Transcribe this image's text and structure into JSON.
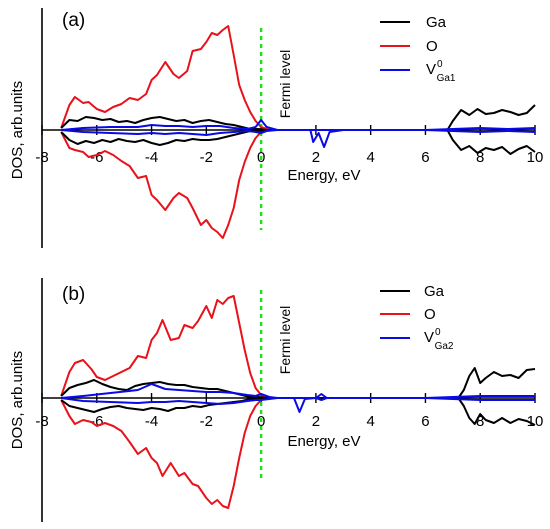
{
  "colors": {
    "ga": "#000000",
    "o": "#e8121b",
    "v": "#0a0ae6",
    "fermi": "#22dd22",
    "axis": "#000000"
  },
  "chart_data": [
    {
      "type": "line",
      "panel_label": "(a)",
      "xlabel": "Energy, eV",
      "ylabel": "DOS, arb.units",
      "xlim": [
        -8,
        10
      ],
      "x_ticks": [
        "-8",
        "-6",
        "-4",
        "-2",
        "0",
        "2",
        "4",
        "6",
        "8",
        "10"
      ],
      "fermi_level": 0,
      "fermi_label": "Fermi level",
      "legend_position": "top-right",
      "legend": [
        {
          "key": "ga",
          "label": "Ga"
        },
        {
          "key": "o",
          "label": "O"
        },
        {
          "key": "v",
          "label": "V",
          "sup": "0",
          "sub": "Ga1"
        }
      ],
      "series": [
        {
          "name": "O",
          "key": "o",
          "x": [
            -7.3,
            -7.0,
            -6.8,
            -6.5,
            -6.3,
            -6.0,
            -5.7,
            -5.4,
            -5.1,
            -4.8,
            -4.5,
            -4.2,
            -4.0,
            -3.8,
            -3.5,
            -3.2,
            -3.0,
            -2.7,
            -2.5,
            -2.2,
            -2.0,
            -1.8,
            -1.6,
            -1.4,
            -1.2,
            -1.0,
            -0.8,
            -0.6,
            -0.4,
            -0.2,
            0.0,
            0.3
          ],
          "up": [
            0.2,
            2.5,
            3.3,
            2.7,
            2.8,
            2.1,
            1.8,
            2.3,
            2.6,
            3.2,
            3.0,
            3.6,
            5.0,
            5.5,
            6.8,
            5.6,
            5.2,
            5.9,
            7.9,
            8.1,
            8.8,
            9.7,
            9.5,
            10.0,
            10.4,
            7.5,
            4.5,
            3.0,
            1.8,
            0.9,
            0.3,
            0.0
          ],
          "down": [
            -0.2,
            -1.8,
            -2.0,
            -2.2,
            -2.7,
            -2.5,
            -2.1,
            -2.5,
            -3.1,
            -3.6,
            -4.8,
            -4.6,
            -6.5,
            -7.0,
            -8.0,
            -6.8,
            -6.3,
            -6.8,
            -7.8,
            -9.5,
            -9.0,
            -9.8,
            -10.2,
            -10.8,
            -9.5,
            -7.8,
            -5.0,
            -3.2,
            -1.8,
            -0.8,
            -0.2,
            0.0
          ]
        },
        {
          "name": "Ga",
          "key": "ga",
          "x": [
            -7.3,
            -7.0,
            -6.7,
            -6.4,
            -6.1,
            -5.8,
            -5.5,
            -5.2,
            -4.9,
            -4.6,
            -4.3,
            -4.0,
            -3.7,
            -3.4,
            -3.1,
            -2.8,
            -2.5,
            -2.2,
            -1.9,
            -1.6,
            -1.3,
            -1.0,
            -0.7,
            -0.4,
            -0.1,
            0.2,
            1.0,
            3.0,
            5.0,
            6.8,
            7.0,
            7.3,
            7.6,
            7.9,
            8.2,
            8.5,
            8.8,
            9.1,
            9.4,
            9.7,
            10.0
          ],
          "up": [
            0.2,
            1.0,
            0.9,
            1.3,
            1.2,
            1.0,
            1.1,
            0.8,
            0.9,
            0.7,
            1.0,
            1.2,
            1.3,
            1.1,
            0.9,
            1.0,
            0.7,
            0.9,
            1.0,
            0.8,
            0.6,
            0.5,
            0.3,
            0.1,
            0.1,
            0.0,
            0.0,
            0.0,
            0.0,
            0.0,
            0.9,
            2.0,
            1.5,
            2.1,
            1.6,
            1.7,
            2.0,
            1.8,
            1.5,
            1.7,
            2.5
          ],
          "down": [
            -0.2,
            -1.0,
            -1.4,
            -1.1,
            -1.3,
            -1.0,
            -1.2,
            -0.9,
            -1.1,
            -1.2,
            -1.0,
            -1.3,
            -1.5,
            -1.3,
            -1.0,
            -1.1,
            -0.9,
            -1.0,
            -1.0,
            -0.9,
            -0.7,
            -0.5,
            -0.3,
            -0.1,
            -0.1,
            0.0,
            0.0,
            0.0,
            0.0,
            0.0,
            -1.0,
            -2.0,
            -1.6,
            -2.3,
            -1.8,
            -2.0,
            -1.7,
            -2.4,
            -1.9,
            -1.6,
            -2.2
          ]
        },
        {
          "name": "V0 Ga1",
          "key": "v",
          "x": [
            -7.3,
            -6.5,
            -5.5,
            -4.5,
            -4.0,
            -3.5,
            -3.0,
            -2.5,
            -2.0,
            -1.5,
            -1.0,
            -0.5,
            -0.2,
            0.0,
            0.2,
            0.6,
            1.8,
            1.9,
            2.1,
            2.3,
            2.5,
            3.0,
            6.0,
            7.0,
            8.0,
            9.0,
            10.0
          ],
          "up": [
            0.0,
            0.2,
            0.3,
            0.3,
            0.5,
            0.4,
            0.4,
            0.3,
            0.4,
            0.4,
            0.2,
            0.1,
            0.3,
            1.0,
            0.3,
            0.0,
            0.0,
            0.0,
            0.0,
            0.0,
            0.0,
            0.0,
            0.0,
            0.1,
            0.2,
            0.1,
            0.2
          ],
          "down": [
            0.0,
            -0.2,
            -0.3,
            -0.4,
            -0.3,
            -0.4,
            -0.3,
            -0.4,
            -0.5,
            -0.3,
            -0.2,
            -0.1,
            -0.2,
            -0.3,
            -0.1,
            0.0,
            0.0,
            -1.2,
            -0.3,
            -1.7,
            -0.2,
            0.0,
            0.0,
            -0.1,
            -0.2,
            -0.1,
            -0.2
          ]
        }
      ]
    },
    {
      "type": "line",
      "panel_label": "(b)",
      "xlabel": "Energy, eV",
      "ylabel": "DOS, arb.units",
      "xlim": [
        -8,
        10
      ],
      "x_ticks": [
        "-8",
        "-6",
        "-4",
        "-2",
        "0",
        "2",
        "4",
        "6",
        "8",
        "10"
      ],
      "fermi_level": 0,
      "fermi_label": "Fermi level",
      "legend_position": "top-right",
      "legend": [
        {
          "key": "ga",
          "label": "Ga"
        },
        {
          "key": "o",
          "label": "O"
        },
        {
          "key": "v",
          "label": "V",
          "sup": "0",
          "sub": "Ga2"
        }
      ],
      "series": [
        {
          "name": "O",
          "key": "o",
          "x": [
            -7.3,
            -7.0,
            -6.8,
            -6.5,
            -6.2,
            -6.0,
            -5.7,
            -5.4,
            -5.1,
            -4.8,
            -4.5,
            -4.2,
            -4.0,
            -3.8,
            -3.6,
            -3.3,
            -3.0,
            -2.8,
            -2.5,
            -2.3,
            -2.0,
            -1.8,
            -1.6,
            -1.4,
            -1.2,
            -1.0,
            -0.8,
            -0.6,
            -0.4,
            -0.2,
            0.0,
            0.3
          ],
          "up": [
            0.2,
            2.6,
            3.5,
            3.8,
            2.9,
            2.1,
            1.8,
            2.2,
            2.6,
            3.0,
            4.2,
            4.0,
            5.8,
            6.5,
            7.8,
            5.8,
            6.0,
            7.3,
            7.0,
            7.7,
            9.2,
            8.0,
            9.8,
            9.4,
            10.0,
            10.2,
            7.5,
            4.8,
            2.5,
            1.0,
            0.3,
            0.0
          ],
          "down": [
            -0.2,
            -1.8,
            -2.6,
            -2.2,
            -2.4,
            -2.8,
            -2.5,
            -2.8,
            -3.3,
            -4.4,
            -5.6,
            -5.0,
            -6.0,
            -6.5,
            -7.8,
            -6.5,
            -7.8,
            -7.5,
            -8.6,
            -8.8,
            -10.0,
            -10.6,
            -10.2,
            -10.8,
            -11.0,
            -8.8,
            -6.0,
            -3.5,
            -1.8,
            -0.8,
            -0.2,
            0.0
          ]
        },
        {
          "name": "Ga",
          "key": "ga",
          "x": [
            -7.3,
            -7.0,
            -6.7,
            -6.4,
            -6.1,
            -5.8,
            -5.5,
            -5.2,
            -4.9,
            -4.6,
            -4.3,
            -4.0,
            -3.7,
            -3.4,
            -3.1,
            -2.8,
            -2.5,
            -2.2,
            -1.9,
            -1.6,
            -1.3,
            -1.0,
            -0.7,
            -0.4,
            -0.1,
            0.2,
            1.0,
            3.0,
            5.0,
            7.2,
            7.4,
            7.6,
            7.8,
            8.0,
            8.2,
            8.5,
            8.8,
            9.1,
            9.4,
            9.7,
            10.0
          ],
          "up": [
            0.2,
            1.0,
            1.3,
            1.5,
            1.8,
            1.4,
            1.1,
            0.9,
            0.8,
            1.2,
            1.4,
            1.5,
            1.6,
            1.4,
            1.3,
            1.3,
            1.1,
            1.0,
            0.9,
            0.9,
            0.7,
            0.5,
            0.3,
            0.1,
            0.1,
            0.0,
            0.0,
            0.0,
            0.0,
            0.0,
            0.8,
            2.2,
            3.0,
            1.5,
            2.0,
            2.6,
            2.2,
            2.3,
            2.0,
            2.8,
            2.9
          ],
          "down": [
            -0.2,
            -0.8,
            -1.0,
            -1.2,
            -1.4,
            -1.1,
            -0.9,
            -0.8,
            -1.0,
            -1.1,
            -1.2,
            -1.0,
            -1.1,
            -1.3,
            -1.0,
            -1.0,
            -0.8,
            -0.9,
            -0.7,
            -0.6,
            -0.5,
            -0.4,
            -0.3,
            -0.1,
            -0.1,
            0.0,
            0.0,
            0.0,
            0.0,
            0.0,
            -0.8,
            -2.0,
            -2.6,
            -1.6,
            -2.2,
            -2.5,
            -2.0,
            -2.5,
            -2.1,
            -2.3,
            -2.7
          ]
        },
        {
          "name": "V0 Ga2",
          "key": "v",
          "x": [
            -7.3,
            -6.5,
            -5.5,
            -4.5,
            -4.0,
            -3.5,
            -3.0,
            -2.5,
            -2.0,
            -1.5,
            -1.0,
            -0.5,
            -0.2,
            0.0,
            0.3,
            0.6,
            1.2,
            1.4,
            1.6,
            2.0,
            2.2,
            2.4,
            3.0,
            6.0,
            7.0,
            8.0,
            9.0,
            10.0
          ],
          "up": [
            0.0,
            0.2,
            0.5,
            0.8,
            1.4,
            0.9,
            0.8,
            0.7,
            0.6,
            0.6,
            0.5,
            0.3,
            0.2,
            0.4,
            0.1,
            0.0,
            0.0,
            0.0,
            0.0,
            0.0,
            0.4,
            0.0,
            0.0,
            0.0,
            0.1,
            0.2,
            0.2,
            0.2
          ],
          "down": [
            0.0,
            -0.3,
            -0.4,
            -0.5,
            -0.4,
            -0.4,
            -0.3,
            -0.4,
            -0.5,
            -0.6,
            -0.5,
            -0.3,
            -0.2,
            -0.2,
            -0.1,
            0.0,
            0.0,
            -1.4,
            -0.1,
            0.0,
            -0.2,
            0.0,
            0.0,
            0.0,
            -0.1,
            -0.2,
            -0.2,
            -0.2
          ]
        }
      ]
    }
  ]
}
